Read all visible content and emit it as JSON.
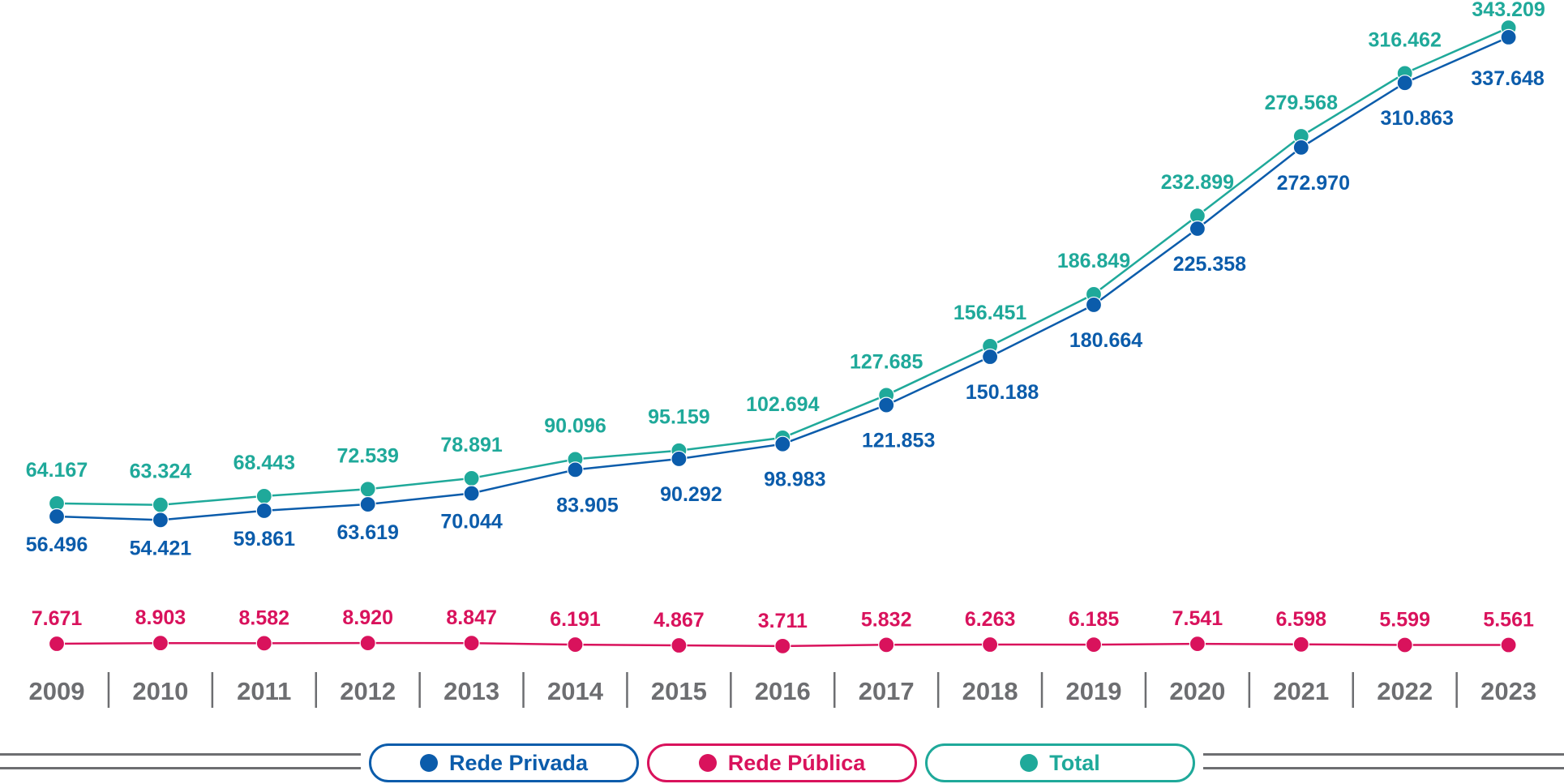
{
  "chart_data": {
    "type": "line",
    "categories": [
      "2009",
      "2010",
      "2011",
      "2012",
      "2013",
      "2014",
      "2015",
      "2016",
      "2017",
      "2018",
      "2019",
      "2020",
      "2021",
      "2022",
      "2023"
    ],
    "series": [
      {
        "name": "Total",
        "key": "total",
        "color": "#1fa99a",
        "values": [
          64167,
          63324,
          68443,
          72539,
          78891,
          90096,
          95159,
          102694,
          127685,
          156451,
          186849,
          232899,
          279568,
          316462,
          343209
        ],
        "labels": [
          "64.167",
          "63.324",
          "68.443",
          "72.539",
          "78.891",
          "90.096",
          "95.159",
          "102.694",
          "127.685",
          "156.451",
          "186.849",
          "232.899",
          "279.568",
          "316.462",
          "343.209"
        ]
      },
      {
        "name": "Rede Privada",
        "key": "privada",
        "color": "#0b5cab",
        "values": [
          56496,
          54421,
          59861,
          63619,
          70044,
          83905,
          90292,
          98983,
          121853,
          150188,
          180664,
          225358,
          272970,
          310863,
          337648
        ],
        "labels": [
          "56.496",
          "54.421",
          "59.861",
          "63.619",
          "70.044",
          "83.905",
          "90.292",
          "98.983",
          "121.853",
          "150.188",
          "180.664",
          "225.358",
          "272.970",
          "310.863",
          "337.648"
        ]
      },
      {
        "name": "Rede Pública",
        "key": "publica",
        "color": "#d9125c",
        "values": [
          7671,
          8903,
          8582,
          8920,
          8847,
          6191,
          4867,
          3711,
          5832,
          6263,
          6185,
          7541,
          6598,
          5599,
          5561
        ],
        "labels": [
          "7.671",
          "8.903",
          "8.582",
          "8.920",
          "8.847",
          "6.191",
          "4.867",
          "3.711",
          "5.832",
          "6.263",
          "6.185",
          "7.541",
          "6.598",
          "5.599",
          "5.561"
        ]
      }
    ],
    "legend": [
      "Rede Privada",
      "Rede Pública",
      "Total"
    ],
    "title": "",
    "xlabel": "",
    "ylabel": ""
  }
}
